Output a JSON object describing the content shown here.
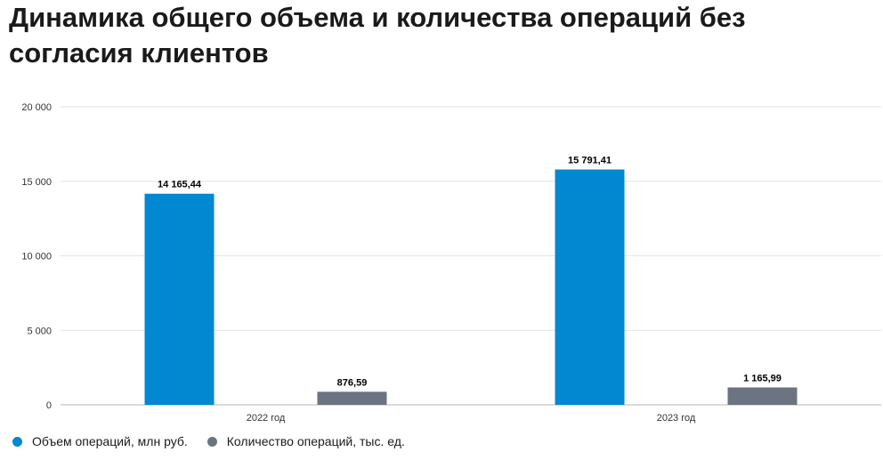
{
  "title": "Динамика общего объема и количества операций без согласия клиентов",
  "colors": {
    "volume": "#0288d1",
    "count": "#6b7480",
    "grid": "#e3e3e3",
    "axis": "#b5b5b5"
  },
  "chart_data": {
    "type": "bar",
    "categories": [
      "2022 год",
      "2023 год"
    ],
    "series": [
      {
        "name": "Объем операций, млн руб.",
        "values": [
          14165.44,
          15791.41
        ],
        "labels": [
          "14 165,44",
          "15 791,41"
        ]
      },
      {
        "name": "Количество операций, тыс. ед.",
        "values": [
          876.59,
          1165.99
        ],
        "labels": [
          "876,59",
          "1 165,99"
        ]
      }
    ],
    "ylim": [
      0,
      20000
    ],
    "yticks": [
      0,
      5000,
      10000,
      15000,
      20000
    ],
    "ytick_labels": [
      "0",
      "5 000",
      "10 000",
      "15 000",
      "20 000"
    ],
    "grid": true,
    "legend_position": "bottom-left"
  }
}
